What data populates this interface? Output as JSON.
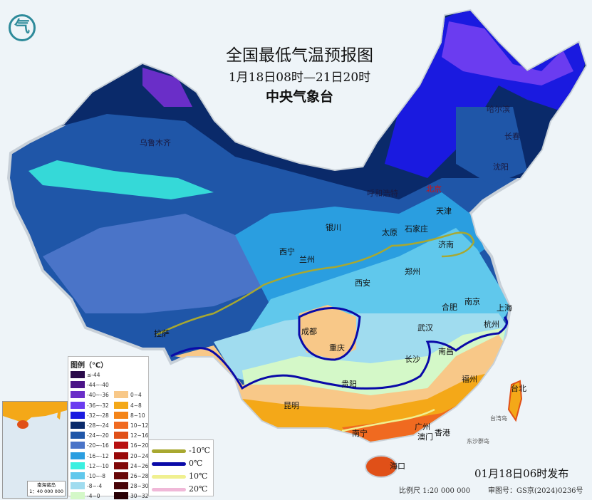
{
  "header": {
    "title": "全国最低气温预报图",
    "period": "1月18日08时—21日20时",
    "issuer": "中央气象台",
    "logo_glyph": "气"
  },
  "cities": {
    "urumqi": "乌鲁木齐",
    "harbin": "哈尔滨",
    "changchun": "长春",
    "shenyang": "沈阳",
    "hohhot": "呼和浩特",
    "beijing": "北京",
    "tianjin": "天津",
    "yinchuan": "银川",
    "taiyuan": "太原",
    "shijiazhuang": "石家庄",
    "xining": "西宁",
    "lanzhou": "兰州",
    "jinan": "济南",
    "zhengzhou": "郑州",
    "xian": "西安",
    "hefei": "合肥",
    "nanjing": "南京",
    "shanghai": "上海",
    "lhasa": "拉萨",
    "chengdu": "成都",
    "chongqing": "重庆",
    "wuhan": "武汉",
    "hangzhou": "杭州",
    "changsha": "长沙",
    "nanchang": "南昌",
    "fuzhou": "福州",
    "taipei": "台北",
    "guiyang": "贵阳",
    "kunming": "昆明",
    "nanning": "南宁",
    "guangzhou": "广州",
    "macau": "澳门",
    "hongkong": "香港",
    "haikou": "海口"
  },
  "small_labels": {
    "taiwan": "台湾岛",
    "dongsha": "东沙群岛",
    "nanhai": "南海诸岛"
  },
  "legend": {
    "title": "图例（℃）",
    "cold": [
      {
        "label": "≤-44",
        "color": "#2a0a4a"
      },
      {
        "label": "-44~-40",
        "color": "#4b1488"
      },
      {
        "label": "-40~-36",
        "color": "#6a2ec8"
      },
      {
        "label": "-36~-32",
        "color": "#6b3cf0"
      },
      {
        "label": "-32~-28",
        "color": "#1a1ae0"
      },
      {
        "label": "-28~-24",
        "color": "#0a2a6a"
      },
      {
        "label": "-24~-20",
        "color": "#1f56a8"
      },
      {
        "label": "-20~-16",
        "color": "#4a74c8"
      },
      {
        "label": "-16~-12",
        "color": "#2a9ee0"
      },
      {
        "label": "-12~-10",
        "color": "#3af0e0"
      },
      {
        "label": "-10~-8",
        "color": "#60c8ec"
      },
      {
        "label": "-8~-4",
        "color": "#a0dcef"
      },
      {
        "label": "-4~0",
        "color": "#d4f8c8"
      }
    ],
    "warm": [
      {
        "label": "0~4",
        "color": "#f8c888"
      },
      {
        "label": "4~8",
        "color": "#f4a818"
      },
      {
        "label": "8~10",
        "color": "#f48418"
      },
      {
        "label": "10~12",
        "color": "#f06a20"
      },
      {
        "label": "12~16",
        "color": "#e05018"
      },
      {
        "label": "16~20",
        "color": "#b81010"
      },
      {
        "label": "20~24",
        "color": "#980808"
      },
      {
        "label": "24~26",
        "color": "#800808"
      },
      {
        "label": "26~28",
        "color": "#680808"
      },
      {
        "label": "28~30",
        "color": "#480408"
      },
      {
        "label": "30~32",
        "color": "#280004"
      }
    ],
    "isotherms": [
      {
        "label": "-10℃",
        "color": "#a8a830"
      },
      {
        "label": "0℃",
        "color": "#0a0aa8"
      },
      {
        "label": "10℃",
        "color": "#f0f090"
      },
      {
        "label": "20℃",
        "color": "#f0b8d8"
      }
    ]
  },
  "inset": {
    "title": "南海诸岛",
    "scale": "1：40 000 000"
  },
  "footer": {
    "published": "01月18日06时发布",
    "scale": "比例尺 1:20 000 000",
    "review_no": "审图号：GS京(2024)0236号"
  }
}
